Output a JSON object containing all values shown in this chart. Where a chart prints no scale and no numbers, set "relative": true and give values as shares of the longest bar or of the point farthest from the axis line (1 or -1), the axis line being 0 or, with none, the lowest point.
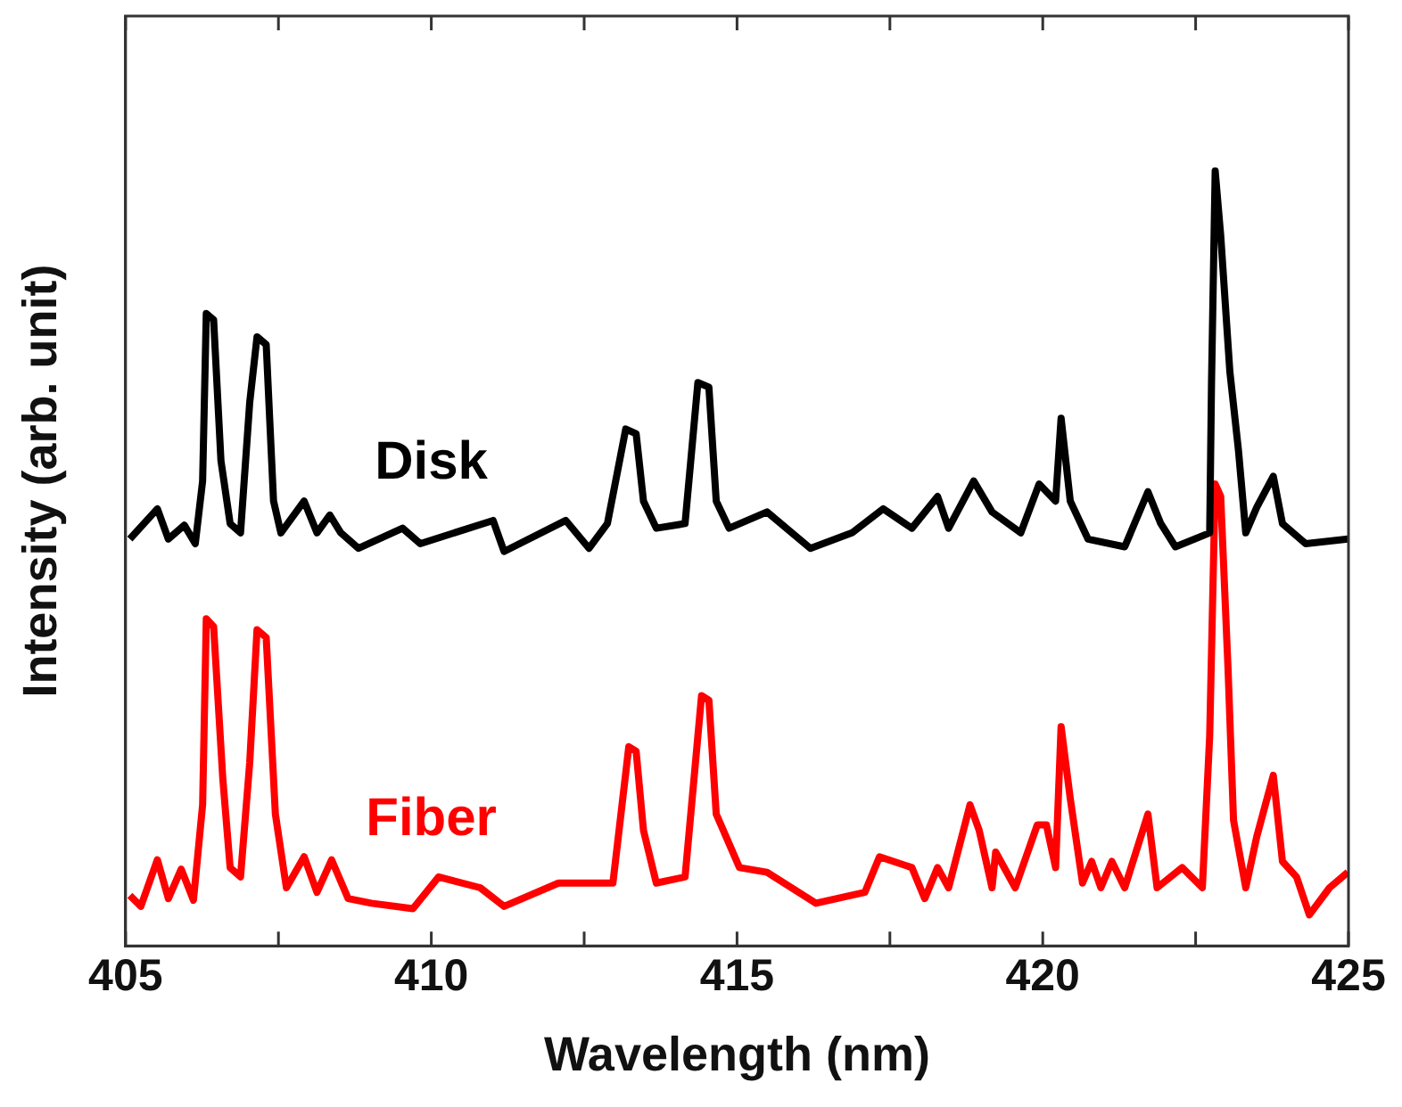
{
  "chart_data": {
    "type": "line",
    "xlabel": "Wavelength (nm)",
    "ylabel": "Intensity (arb. unit)",
    "relative": true,
    "xlim": [
      405,
      425
    ],
    "xticks": [
      405,
      {
        "value": 407.5,
        "label": null
      },
      410,
      {
        "value": 412.5,
        "label": null
      },
      415,
      {
        "value": 417.5,
        "label": null
      },
      420,
      {
        "value": 422.5,
        "label": null
      },
      425
    ],
    "grid": false,
    "legend": false,
    "marker": "none",
    "line_style": "solid",
    "series": [
      {
        "name": "Disk",
        "color": "#000000",
        "x": [
          405.07,
          405.52,
          405.7,
          405.96,
          406.14,
          406.26,
          406.32,
          406.44,
          406.56,
          406.71,
          406.88,
          407.03,
          407.15,
          407.3,
          407.42,
          407.54,
          407.92,
          408.13,
          408.34,
          408.52,
          408.81,
          409.53,
          409.82,
          411.01,
          411.19,
          412.2,
          412.58,
          412.88,
          413.18,
          413.35,
          413.47,
          413.68,
          414.15,
          414.36,
          414.54,
          414.66,
          414.87,
          415.49,
          416.2,
          416.88,
          417.39,
          417.86,
          418.28,
          418.46,
          418.87,
          419.17,
          419.64,
          419.94,
          420.21,
          420.3,
          420.45,
          420.74,
          421.34,
          421.72,
          421.93,
          422.17,
          422.73,
          422.76,
          422.82,
          422.91,
          423.06,
          423.2,
          423.32,
          423.5,
          423.77,
          423.92,
          424.3,
          424.99
        ],
        "values": [
          0.525,
          0.564,
          0.525,
          0.543,
          0.519,
          0.6,
          0.816,
          0.808,
          0.626,
          0.545,
          0.533,
          0.701,
          0.786,
          0.776,
          0.574,
          0.533,
          0.574,
          0.533,
          0.556,
          0.533,
          0.513,
          0.539,
          0.519,
          0.549,
          0.509,
          0.549,
          0.513,
          0.545,
          0.667,
          0.661,
          0.574,
          0.539,
          0.545,
          0.727,
          0.721,
          0.574,
          0.539,
          0.56,
          0.513,
          0.533,
          0.564,
          0.539,
          0.58,
          0.539,
          0.6,
          0.56,
          0.533,
          0.596,
          0.574,
          0.681,
          0.574,
          0.525,
          0.515,
          0.586,
          0.545,
          0.515,
          0.533,
          0.727,
          1,
          0.917,
          0.741,
          0.64,
          0.533,
          0.566,
          0.606,
          0.545,
          0.519,
          0.525
        ]
      },
      {
        "name": "Fiber",
        "color": "#ff0000",
        "x": [
          405.07,
          405.25,
          405.52,
          405.7,
          405.91,
          406.11,
          406.26,
          406.32,
          406.44,
          406.59,
          406.71,
          406.88,
          407.03,
          407.15,
          407.3,
          407.45,
          407.63,
          407.92,
          408.13,
          408.37,
          408.64,
          409.02,
          409.7,
          410.12,
          410.8,
          411.19,
          412.08,
          412.97,
          413.23,
          413.35,
          413.47,
          413.68,
          414.15,
          414.42,
          414.54,
          414.66,
          415.04,
          415.49,
          416.29,
          417.09,
          417.33,
          417.86,
          418.07,
          418.28,
          418.46,
          418.81,
          418.96,
          419.17,
          419.23,
          419.55,
          419.91,
          420.06,
          420.21,
          420.3,
          420.45,
          420.65,
          420.8,
          420.95,
          421.13,
          421.34,
          421.72,
          421.87,
          422.28,
          422.61,
          422.73,
          422.82,
          422.91,
          423.03,
          423.12,
          423.32,
          423.5,
          423.77,
          423.92,
          424.15,
          424.36,
          424.69,
          424.99
        ],
        "values": [
          0.065,
          0.051,
          0.111,
          0.061,
          0.099,
          0.059,
          0.182,
          0.422,
          0.412,
          0.216,
          0.101,
          0.089,
          0.236,
          0.408,
          0.398,
          0.17,
          0.075,
          0.115,
          0.069,
          0.111,
          0.061,
          0.055,
          0.048,
          0.089,
          0.075,
          0.051,
          0.081,
          0.081,
          0.257,
          0.251,
          0.149,
          0.081,
          0.089,
          0.323,
          0.317,
          0.17,
          0.101,
          0.095,
          0.055,
          0.069,
          0.115,
          0.101,
          0.061,
          0.101,
          0.075,
          0.182,
          0.149,
          0.075,
          0.121,
          0.075,
          0.156,
          0.156,
          0.101,
          0.283,
          0.19,
          0.081,
          0.109,
          0.075,
          0.109,
          0.075,
          0.17,
          0.075,
          0.101,
          0.075,
          0.271,
          0.596,
          0.58,
          0.358,
          0.162,
          0.075,
          0.141,
          0.22,
          0.109,
          0.089,
          0.04,
          0.075,
          0.095
        ]
      }
    ]
  }
}
